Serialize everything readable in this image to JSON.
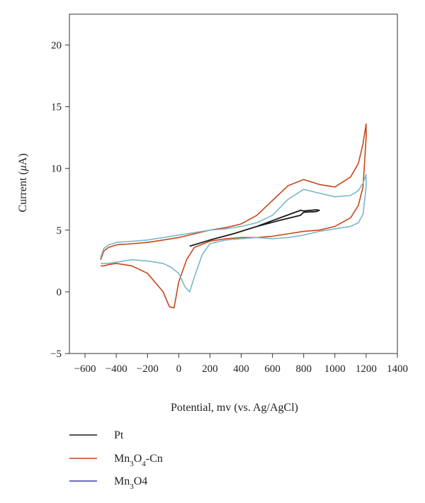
{
  "chart_data": {
    "type": "line",
    "title": "",
    "xlabel": "Potential, mv (vs. Ag/AgCl)",
    "ylabel_parts": [
      "Current (",
      "μ",
      "A)"
    ],
    "xlim": [
      -700,
      1400
    ],
    "ylim": [
      -5,
      22.5
    ],
    "xticks": [
      -600,
      -400,
      -200,
      0,
      200,
      400,
      600,
      800,
      1000,
      1200,
      1400
    ],
    "yticks": [
      -5,
      0,
      5,
      10,
      15,
      20
    ],
    "grid": false,
    "legend_placement": "bottom-left, below plot",
    "series": [
      {
        "name": "Pt",
        "legend": {
          "base": "Pt",
          "parts": []
        },
        "color": "#1a1a1a",
        "line_color": "#1a1a1a",
        "x": [
          70,
          200,
          350,
          500,
          650,
          780,
          800,
          880,
          900,
          880,
          800,
          780,
          650,
          500,
          350,
          200,
          70
        ],
        "y": [
          3.7,
          4.2,
          4.7,
          5.3,
          6.0,
          6.6,
          6.55,
          6.65,
          6.6,
          6.5,
          6.45,
          6.2,
          5.8,
          5.3,
          4.7,
          4.2,
          3.7
        ]
      },
      {
        "name": "Mn3O4-Cn",
        "legend": {
          "base": "",
          "parts": [
            {
              "t": "Mn",
              "sub": false
            },
            {
              "t": "3",
              "sub": true
            },
            {
              "t": "O",
              "sub": false
            },
            {
              "t": "4",
              "sub": true
            },
            {
              "t": "-Cn",
              "sub": false
            }
          ]
        },
        "color": "#c8461a",
        "line_color": "#c8461a",
        "x": [
          -500,
          -480,
          -450,
          -400,
          -300,
          -200,
          -100,
          0,
          100,
          200,
          300,
          400,
          500,
          600,
          700,
          800,
          900,
          1000,
          1100,
          1150,
          1180,
          1200,
          1200,
          1180,
          1150,
          1100,
          1000,
          900,
          800,
          700,
          600,
          500,
          400,
          300,
          200,
          100,
          50,
          0,
          -30,
          -60,
          -100,
          -200,
          -300,
          -400,
          -450,
          -480,
          -500
        ],
        "y": [
          2.6,
          3.3,
          3.6,
          3.8,
          3.9,
          4.0,
          4.2,
          4.4,
          4.7,
          5.0,
          5.2,
          5.5,
          6.2,
          7.4,
          8.6,
          9.1,
          8.7,
          8.5,
          9.3,
          10.4,
          12.0,
          13.6,
          12.5,
          8.5,
          7.0,
          6.0,
          5.3,
          5.0,
          4.9,
          4.7,
          4.5,
          4.4,
          4.4,
          4.3,
          4.1,
          3.6,
          2.6,
          0.8,
          -1.3,
          -1.2,
          0.0,
          1.5,
          2.1,
          2.3,
          2.2,
          2.1,
          2.1
        ]
      },
      {
        "name": "Mn3O4",
        "legend": {
          "base": "",
          "parts": [
            {
              "t": "Mn",
              "sub": false
            },
            {
              "t": "3",
              "sub": true
            },
            {
              "t": "O",
              "sub": false
            },
            {
              "t": "4",
              "sub": false
            }
          ]
        },
        "color": "#7ab8c4",
        "legend_color": "#3a3fa0",
        "line_color": "#7ab8c4",
        "x": [
          -500,
          -480,
          -450,
          -400,
          -300,
          -200,
          -100,
          0,
          100,
          200,
          300,
          400,
          500,
          600,
          700,
          800,
          900,
          1000,
          1100,
          1150,
          1180,
          1200,
          1200,
          1180,
          1150,
          1100,
          1000,
          900,
          800,
          700,
          600,
          500,
          400,
          300,
          200,
          150,
          100,
          70,
          40,
          0,
          -50,
          -100,
          -200,
          -300,
          -400,
          -450,
          -500
        ],
        "y": [
          2.8,
          3.5,
          3.8,
          4.0,
          4.1,
          4.2,
          4.4,
          4.6,
          4.8,
          5.0,
          5.1,
          5.3,
          5.6,
          6.2,
          7.5,
          8.3,
          8.0,
          7.7,
          7.8,
          8.2,
          8.8,
          9.5,
          8.5,
          6.3,
          5.6,
          5.3,
          5.1,
          4.9,
          4.6,
          4.4,
          4.3,
          4.4,
          4.3,
          4.2,
          3.9,
          3.0,
          1.2,
          0.0,
          0.4,
          1.5,
          2.0,
          2.3,
          2.5,
          2.6,
          2.4,
          2.3,
          2.3
        ]
      }
    ]
  }
}
